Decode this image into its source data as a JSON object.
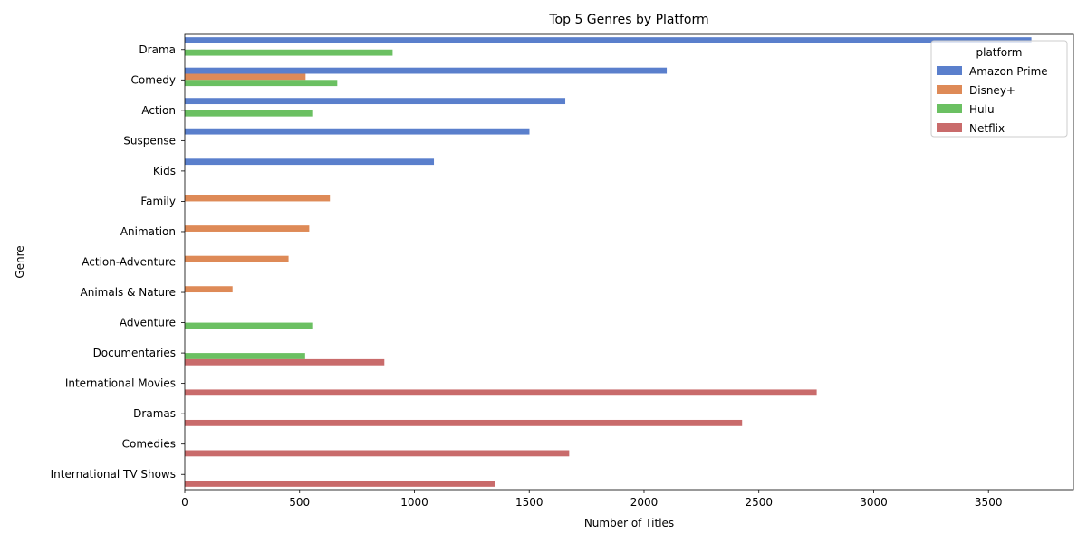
{
  "chart_data": {
    "type": "bar",
    "orientation": "horizontal",
    "title": "Top 5 Genres by Platform",
    "xlabel": "Number of Titles",
    "ylabel": "Genre",
    "xlim": [
      0,
      3870
    ],
    "xticks": [
      0,
      500,
      1000,
      1500,
      2000,
      2500,
      3000,
      3500
    ],
    "grid": false,
    "legend": {
      "title": "platform",
      "placement": "top-right"
    },
    "categories": [
      "Drama",
      "Comedy",
      "Action",
      "Suspense",
      "Kids",
      "Family",
      "Animation",
      "Action-Adventure",
      "Animals & Nature",
      "Adventure",
      "Documentaries",
      "International Movies",
      "Dramas",
      "Comedies",
      "International TV Shows"
    ],
    "series": [
      {
        "name": "Amazon Prime",
        "color": "#5a7fcc",
        "values": [
          3687,
          2099,
          1657,
          1501,
          1085,
          null,
          null,
          null,
          null,
          null,
          null,
          null,
          null,
          null,
          null
        ]
      },
      {
        "name": "Disney+",
        "color": "#de8a57",
        "values": [
          null,
          526,
          null,
          null,
          null,
          632,
          542,
          452,
          208,
          null,
          null,
          null,
          null,
          null,
          null
        ]
      },
      {
        "name": "Hulu",
        "color": "#6bc062",
        "values": [
          905,
          664,
          555,
          null,
          null,
          null,
          null,
          null,
          null,
          555,
          524,
          null,
          null,
          null,
          null
        ]
      },
      {
        "name": "Netflix",
        "color": "#c96b6b",
        "values": [
          null,
          null,
          null,
          null,
          null,
          null,
          null,
          null,
          null,
          null,
          869,
          2752,
          2427,
          1674,
          1351
        ]
      }
    ]
  }
}
